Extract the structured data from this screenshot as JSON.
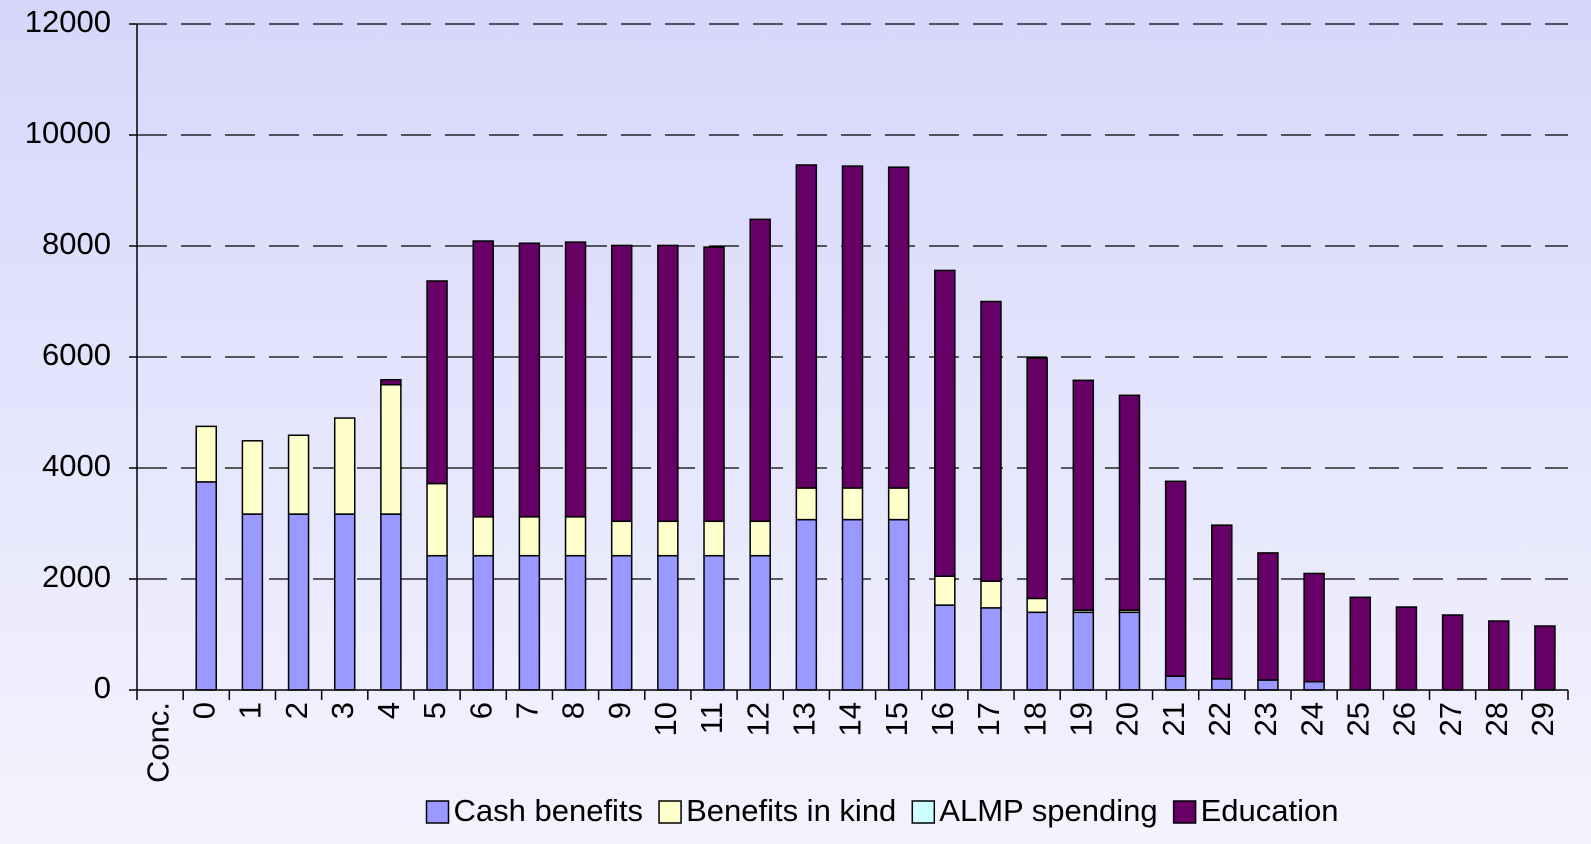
{
  "chart_data": {
    "type": "stacked_bar",
    "categories": [
      "Conc.",
      "0",
      "1",
      "2",
      "3",
      "4",
      "5",
      "6",
      "7",
      "8",
      "9",
      "10",
      "11",
      "12",
      "13",
      "14",
      "15",
      "16",
      "17",
      "18",
      "19",
      "20",
      "21",
      "22",
      "23",
      "24",
      "25",
      "26",
      "27",
      "28",
      "29"
    ],
    "series": [
      {
        "name": "Cash benefits",
        "color": "#9999ff",
        "values": [
          null,
          3750,
          3170,
          3170,
          3170,
          3170,
          2420,
          2420,
          2420,
          2420,
          2420,
          2420,
          2420,
          2420,
          3070,
          3070,
          3070,
          1530,
          1480,
          1400,
          1400,
          1400,
          250,
          200,
          180,
          150,
          0,
          0,
          0,
          0,
          0
        ]
      },
      {
        "name": "Benefits in kind",
        "color": "#ffffcc",
        "values": [
          null,
          1000,
          1320,
          1420,
          1730,
          2330,
          1300,
          700,
          700,
          700,
          620,
          620,
          620,
          620,
          570,
          570,
          570,
          520,
          480,
          250,
          40,
          40,
          0,
          0,
          0,
          0,
          0,
          0,
          0,
          0,
          0
        ]
      },
      {
        "name": "ALMP spending",
        "color": "#ccffff",
        "values": [
          null,
          0,
          0,
          0,
          0,
          0,
          0,
          0,
          0,
          0,
          0,
          0,
          0,
          0,
          0,
          0,
          0,
          0,
          0,
          0,
          0,
          0,
          0,
          0,
          0,
          0,
          0,
          0,
          0,
          0,
          0
        ]
      },
      {
        "name": "Education",
        "color": "#660066",
        "values": [
          null,
          0,
          0,
          0,
          0,
          90,
          3650,
          4970,
          4930,
          4950,
          4970,
          4970,
          4940,
          5440,
          5820,
          5800,
          5780,
          5510,
          5040,
          4330,
          4140,
          3870,
          3510,
          2770,
          2290,
          1950,
          1670,
          1495,
          1351,
          1243,
          1153
        ]
      }
    ],
    "ylim": [
      0,
      12000
    ],
    "yticks": [
      0,
      2000,
      4000,
      6000,
      8000,
      10000,
      12000
    ],
    "grid": true,
    "legend": "bottom"
  }
}
